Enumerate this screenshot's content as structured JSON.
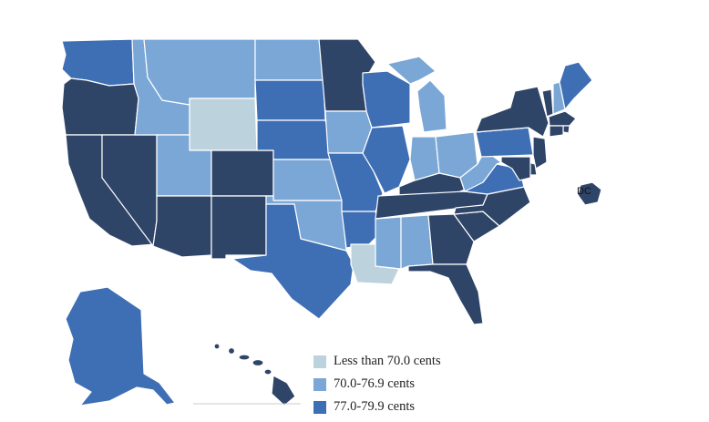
{
  "legend": [
    {
      "label": "Less than 70.0 cents",
      "color": "#bcd3de"
    },
    {
      "label": "70.0-76.9 cents",
      "color": "#7aa7d6"
    },
    {
      "label": "77.0-79.9 cents",
      "color": "#3e6eb4"
    }
  ],
  "colors": {
    "darkest": "#2f4568",
    "dark": "#3e6eb4",
    "medium": "#7aa7d6",
    "light": "#bcd3de",
    "border": "#ffffff"
  },
  "dc_label": "DC",
  "states": [
    {
      "id": "WA",
      "cat": "dark"
    },
    {
      "id": "OR",
      "cat": "darkest"
    },
    {
      "id": "CA",
      "cat": "darkest"
    },
    {
      "id": "NV",
      "cat": "darkest"
    },
    {
      "id": "ID",
      "cat": "medium"
    },
    {
      "id": "MT",
      "cat": "medium"
    },
    {
      "id": "WY",
      "cat": "light"
    },
    {
      "id": "UT",
      "cat": "medium"
    },
    {
      "id": "AZ",
      "cat": "darkest"
    },
    {
      "id": "CO",
      "cat": "darkest"
    },
    {
      "id": "NM",
      "cat": "darkest"
    },
    {
      "id": "ND",
      "cat": "medium"
    },
    {
      "id": "SD",
      "cat": "dark"
    },
    {
      "id": "NE",
      "cat": "dark"
    },
    {
      "id": "KS",
      "cat": "medium"
    },
    {
      "id": "OK",
      "cat": "medium"
    },
    {
      "id": "TX",
      "cat": "dark"
    },
    {
      "id": "MN",
      "cat": "darkest"
    },
    {
      "id": "IA",
      "cat": "medium"
    },
    {
      "id": "MO",
      "cat": "dark"
    },
    {
      "id": "AR",
      "cat": "dark"
    },
    {
      "id": "LA",
      "cat": "light"
    },
    {
      "id": "WI",
      "cat": "dark"
    },
    {
      "id": "IL",
      "cat": "dark"
    },
    {
      "id": "MI",
      "cat": "medium"
    },
    {
      "id": "IN",
      "cat": "medium"
    },
    {
      "id": "OH",
      "cat": "medium"
    },
    {
      "id": "KY",
      "cat": "darkest"
    },
    {
      "id": "TN",
      "cat": "darkest"
    },
    {
      "id": "MS",
      "cat": "medium"
    },
    {
      "id": "AL",
      "cat": "medium"
    },
    {
      "id": "GA",
      "cat": "darkest"
    },
    {
      "id": "FL",
      "cat": "darkest"
    },
    {
      "id": "SC",
      "cat": "darkest"
    },
    {
      "id": "NC",
      "cat": "darkest"
    },
    {
      "id": "VA",
      "cat": "dark"
    },
    {
      "id": "WV",
      "cat": "medium"
    },
    {
      "id": "PA",
      "cat": "dark"
    },
    {
      "id": "NY",
      "cat": "darkest"
    },
    {
      "id": "VT",
      "cat": "darkest"
    },
    {
      "id": "NH",
      "cat": "medium"
    },
    {
      "id": "ME",
      "cat": "dark"
    },
    {
      "id": "MA",
      "cat": "darkest"
    },
    {
      "id": "RI",
      "cat": "darkest"
    },
    {
      "id": "CT",
      "cat": "darkest"
    },
    {
      "id": "NJ",
      "cat": "darkest"
    },
    {
      "id": "DE",
      "cat": "darkest"
    },
    {
      "id": "MD",
      "cat": "darkest"
    },
    {
      "id": "DC",
      "cat": "darkest"
    },
    {
      "id": "AK",
      "cat": "dark"
    },
    {
      "id": "HI",
      "cat": "darkest"
    }
  ]
}
